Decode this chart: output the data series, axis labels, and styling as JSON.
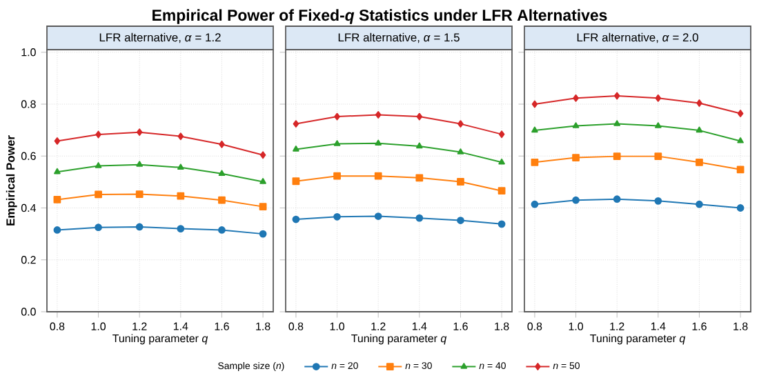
{
  "chart_data": [
    {
      "type": "line",
      "title": "Empirical Power of Fixed-*q* Statistics under LFR Alternatives",
      "subtitle": "LFR alternative, *α* = 1.2",
      "xlabel": "Tuning parameter *q*",
      "ylabel": "Empirical Power",
      "x": [
        0.8,
        1.0,
        1.2,
        1.4,
        1.6,
        1.8
      ],
      "series": [
        {
          "color": "#1f77b4",
          "marker": "circle",
          "values": [
            0.315,
            0.325,
            0.327,
            0.32,
            0.315,
            0.3
          ]
        },
        {
          "color": "#ff7f0e",
          "marker": "square",
          "values": [
            0.432,
            0.452,
            0.453,
            0.446,
            0.43,
            0.405
          ]
        },
        {
          "color": "#2ca02c",
          "marker": "triangle",
          "values": [
            0.539,
            0.562,
            0.567,
            0.556,
            0.532,
            0.501
          ]
        },
        {
          "color": "#d62728",
          "marker": "diamond",
          "values": [
            0.658,
            0.683,
            0.692,
            0.676,
            0.645,
            0.604
          ]
        }
      ],
      "xlim": [
        0.75,
        1.85
      ],
      "xticks": [
        {
          "value": 0.8,
          "label": "0.8"
        },
        {
          "value": 1.0,
          "label": "1.0"
        },
        {
          "value": 1.2,
          "label": "1.2"
        },
        {
          "value": 1.4,
          "label": "1.4"
        },
        {
          "value": 1.6,
          "label": "1.6"
        },
        {
          "value": 1.8,
          "label": "1.8"
        }
      ],
      "ylim": [
        0,
        1.01
      ],
      "yticks": [
        {
          "value": 0,
          "label": "0.0"
        },
        {
          "value": 0.2,
          "label": "0.2"
        },
        {
          "value": 0.4,
          "label": "0.4"
        },
        {
          "value": 0.6,
          "label": "0.6"
        },
        {
          "value": 0.8,
          "label": "0.8"
        },
        {
          "value": 1.0,
          "label": "1.0"
        }
      ],
      "grid": true
    },
    {
      "type": "line",
      "subtitle": "LFR alternative, *α* = 1.5",
      "xlabel": "Tuning parameter *q*",
      "legend_title": "Sample size (*n*)",
      "legend": "bottom",
      "x": [
        0.8,
        1.0,
        1.2,
        1.4,
        1.6,
        1.8
      ],
      "series": [
        {
          "name": "*n* = 20",
          "color": "#1f77b4",
          "marker": "circle",
          "values": [
            0.356,
            0.366,
            0.368,
            0.361,
            0.352,
            0.338
          ]
        },
        {
          "name": "*n* = 30",
          "color": "#ff7f0e",
          "marker": "square",
          "values": [
            0.503,
            0.523,
            0.523,
            0.516,
            0.501,
            0.466
          ]
        },
        {
          "name": "*n* = 40",
          "color": "#2ca02c",
          "marker": "triangle",
          "values": [
            0.626,
            0.647,
            0.649,
            0.638,
            0.615,
            0.576
          ]
        },
        {
          "name": "*n* = 50",
          "color": "#d62728",
          "marker": "diamond",
          "values": [
            0.724,
            0.752,
            0.759,
            0.752,
            0.724,
            0.684
          ]
        }
      ],
      "xlim": [
        0.75,
        1.85
      ],
      "xticks": [
        {
          "value": 0.8,
          "label": "0.8"
        },
        {
          "value": 1.0,
          "label": "1.0"
        },
        {
          "value": 1.2,
          "label": "1.2"
        },
        {
          "value": 1.4,
          "label": "1.4"
        },
        {
          "value": 1.6,
          "label": "1.6"
        },
        {
          "value": 1.8,
          "label": "1.8"
        }
      ],
      "ylim": [
        0,
        1.01
      ],
      "yticks": [
        {
          "value": 0,
          "label": null
        },
        {
          "value": 0.2,
          "label": null
        },
        {
          "value": 0.4,
          "label": null
        },
        {
          "value": 0.6,
          "label": null
        },
        {
          "value": 0.8,
          "label": null
        },
        {
          "value": 1.0,
          "label": null
        }
      ],
      "tick_labels": "x",
      "grid": true
    },
    {
      "type": "line",
      "subtitle": "LFR alternative, *α* = 2.0",
      "xlabel": "Tuning parameter *q*",
      "x": [
        0.8,
        1.0,
        1.2,
        1.4,
        1.6,
        1.8
      ],
      "series": [
        {
          "color": "#1f77b4",
          "marker": "circle",
          "values": [
            0.414,
            0.43,
            0.434,
            0.427,
            0.414,
            0.4
          ]
        },
        {
          "color": "#ff7f0e",
          "marker": "square",
          "values": [
            0.576,
            0.594,
            0.599,
            0.599,
            0.576,
            0.548
          ]
        },
        {
          "color": "#2ca02c",
          "marker": "triangle",
          "values": [
            0.699,
            0.716,
            0.724,
            0.716,
            0.699,
            0.658
          ]
        },
        {
          "color": "#d62728",
          "marker": "diamond",
          "values": [
            0.8,
            0.823,
            0.832,
            0.823,
            0.804,
            0.764
          ]
        }
      ],
      "xlim": [
        0.75,
        1.85
      ],
      "xticks": [
        {
          "value": 0.8,
          "label": "0.8"
        },
        {
          "value": 1.0,
          "label": "1.0"
        },
        {
          "value": 1.2,
          "label": "1.2"
        },
        {
          "value": 1.4,
          "label": "1.4"
        },
        {
          "value": 1.6,
          "label": "1.6"
        },
        {
          "value": 1.8,
          "label": "1.8"
        }
      ],
      "ylim": [
        0,
        1.01
      ],
      "yticks": [
        {
          "value": 0,
          "label": null
        },
        {
          "value": 0.2,
          "label": null
        },
        {
          "value": 0.4,
          "label": null
        },
        {
          "value": 0.6,
          "label": null
        },
        {
          "value": 0.8,
          "label": null
        },
        {
          "value": 1.0,
          "label": null
        }
      ],
      "tick_labels": "x",
      "grid": true
    }
  ]
}
